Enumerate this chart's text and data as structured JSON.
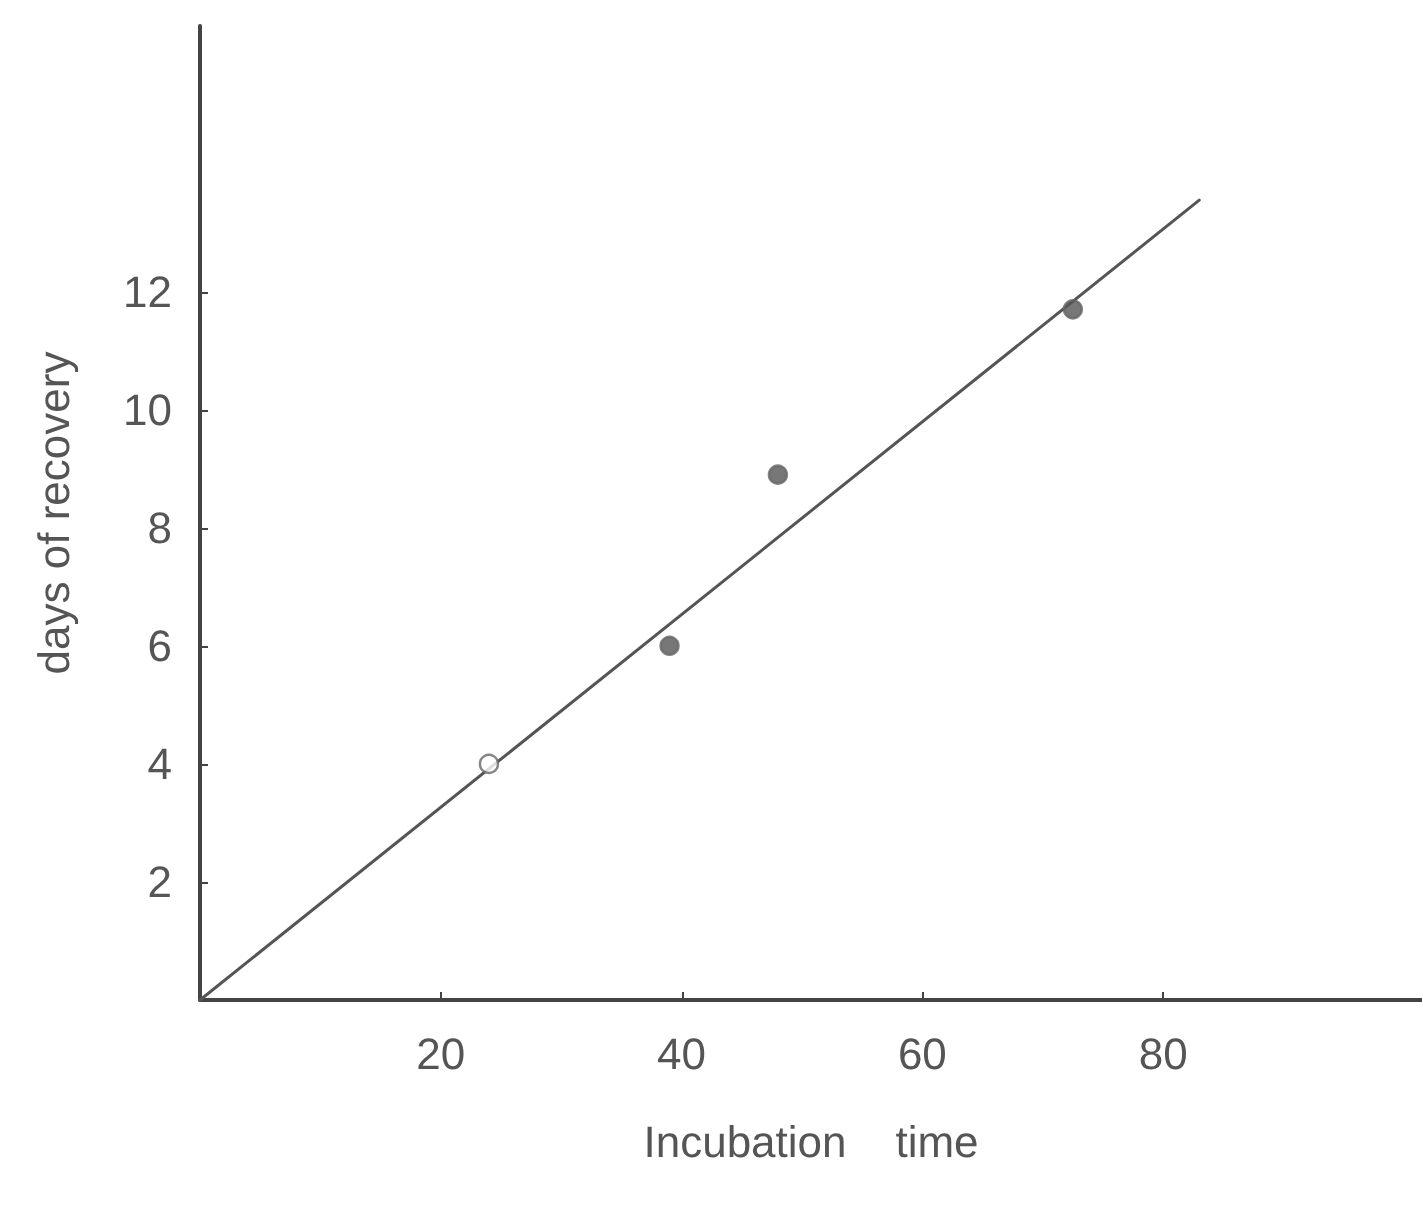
{
  "chart_data": {
    "type": "scatter",
    "xlabel": "Incubation    time",
    "ylabel": "days of recovery",
    "xlim": [
      0,
      101.5
    ],
    "ylim": [
      0,
      16.5
    ],
    "xticks": [
      20,
      40,
      60,
      80
    ],
    "yticks": [
      2,
      4,
      6,
      8,
      10,
      12
    ],
    "grid": false,
    "marker": "circle",
    "series": [
      {
        "color": "#ffffff",
        "x": [
          24
        ],
        "values": [
          4
        ]
      },
      {
        "color": "#555555",
        "x": [
          39,
          48,
          72.5
        ],
        "values": [
          6,
          8.9,
          11.7
        ]
      },
      {
        "type": "line",
        "color": "#555555",
        "marker": "none",
        "line_style": "solid",
        "x": [
          0,
          83
        ],
        "values": [
          0,
          13.55
        ]
      }
    ]
  }
}
